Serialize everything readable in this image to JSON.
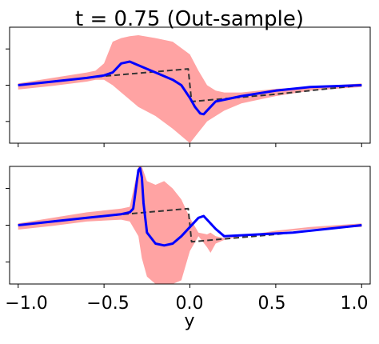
{
  "chart_data": {
    "title": "t = 0.75 (Out-sample)",
    "xlabel": "y",
    "x_ticks": [
      "−1.0",
      "−0.5",
      "0.0",
      "0.5",
      "1.0"
    ],
    "x_tick_values": [
      -1.0,
      -0.5,
      0.0,
      0.5,
      1.0
    ],
    "xlim": [
      -1.05,
      1.05
    ],
    "type": "line",
    "panels": [
      {
        "ylim": [
          -1.6,
          1.6
        ],
        "series": [
          {
            "role": "mean",
            "color": "#0000ff",
            "x": [
              -1.0,
              -0.8,
              -0.6,
              -0.5,
              -0.45,
              -0.4,
              -0.35,
              -0.3,
              -0.2,
              -0.1,
              -0.05,
              0.0,
              0.03,
              0.06,
              0.08,
              0.1,
              0.15,
              0.2,
              0.3,
              0.5,
              0.7,
              1.0
            ],
            "y": [
              0.0,
              0.1,
              0.2,
              0.27,
              0.35,
              0.6,
              0.65,
              0.55,
              0.35,
              0.15,
              0.0,
              -0.35,
              -0.6,
              -0.78,
              -0.8,
              -0.7,
              -0.45,
              -0.4,
              -0.3,
              -0.15,
              -0.05,
              0.0
            ]
          },
          {
            "role": "truth",
            "color": "#333333",
            "x": [
              -1.0,
              -0.5,
              -0.01,
              0.01,
              0.5,
              1.0
            ],
            "y": [
              0.0,
              0.25,
              0.45,
              -0.45,
              -0.25,
              0.0
            ]
          }
        ],
        "band": {
          "color": "#ff9999",
          "x": [
            -1.0,
            -0.8,
            -0.6,
            -0.55,
            -0.5,
            -0.45,
            -0.4,
            -0.35,
            -0.3,
            -0.2,
            -0.1,
            0.0,
            0.05,
            0.1,
            0.15,
            0.2,
            0.3,
            0.5,
            0.7,
            1.0
          ],
          "upper": [
            0.05,
            0.2,
            0.35,
            0.4,
            0.6,
            1.2,
            1.3,
            1.35,
            1.38,
            1.3,
            1.2,
            0.85,
            0.4,
            0.0,
            -0.15,
            -0.2,
            -0.2,
            -0.1,
            -0.05,
            0.05
          ],
          "lower": [
            -0.12,
            -0.02,
            0.1,
            0.15,
            0.15,
            0.0,
            -0.2,
            -0.4,
            -0.6,
            -0.85,
            -1.2,
            -1.6,
            -1.3,
            -1.0,
            -0.85,
            -0.7,
            -0.5,
            -0.3,
            -0.15,
            -0.05
          ]
        }
      },
      {
        "ylim": [
          -1.6,
          1.6
        ],
        "series": [
          {
            "role": "mean",
            "color": "#0000ff",
            "x": [
              -1.0,
              -0.8,
              -0.6,
              -0.4,
              -0.35,
              -0.33,
              -0.3,
              -0.29,
              -0.28,
              -0.27,
              -0.25,
              -0.2,
              -0.15,
              -0.1,
              -0.05,
              0.0,
              0.05,
              0.08,
              0.1,
              0.15,
              0.2,
              0.4,
              0.6,
              0.8,
              1.0
            ],
            "y": [
              0.0,
              0.1,
              0.2,
              0.3,
              0.35,
              0.45,
              1.5,
              1.55,
              1.3,
              0.6,
              -0.2,
              -0.5,
              -0.55,
              -0.5,
              -0.3,
              -0.05,
              0.2,
              0.25,
              0.15,
              -0.1,
              -0.3,
              -0.25,
              -0.2,
              -0.1,
              0.0
            ]
          },
          {
            "role": "truth",
            "color": "#333333",
            "x": [
              -1.0,
              -0.5,
              -0.01,
              0.01,
              0.5,
              1.0
            ],
            "y": [
              0.0,
              0.25,
              0.45,
              -0.45,
              -0.25,
              0.0
            ]
          }
        ],
        "band": {
          "color": "#ff9999",
          "x": [
            -1.0,
            -0.8,
            -0.6,
            -0.4,
            -0.35,
            -0.3,
            -0.28,
            -0.25,
            -0.2,
            -0.15,
            -0.1,
            -0.05,
            0.0,
            0.05,
            0.1,
            0.12,
            0.15,
            0.2,
            0.3,
            0.5,
            0.7,
            1.0
          ],
          "upper": [
            0.05,
            0.2,
            0.35,
            0.45,
            0.5,
            1.6,
            1.6,
            1.2,
            1.1,
            1.2,
            1.0,
            0.7,
            0.2,
            -0.2,
            -0.25,
            -0.2,
            -0.3,
            -0.35,
            -0.3,
            -0.15,
            -0.05,
            0.05
          ],
          "lower": [
            -0.12,
            -0.02,
            0.1,
            0.15,
            0.1,
            -0.3,
            -0.9,
            -1.4,
            -1.6,
            -1.6,
            -1.6,
            -1.5,
            -0.7,
            -0.3,
            -0.6,
            -0.75,
            -0.5,
            -0.4,
            -0.3,
            -0.2,
            -0.1,
            -0.05
          ]
        }
      }
    ]
  }
}
